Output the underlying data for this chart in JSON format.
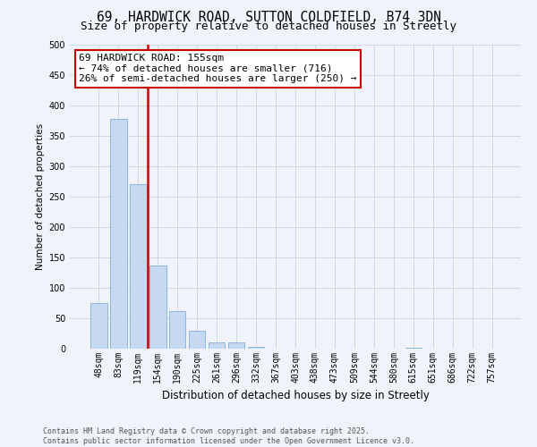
{
  "title": "69, HARDWICK ROAD, SUTTON COLDFIELD, B74 3DN",
  "subtitle": "Size of property relative to detached houses in Streetly",
  "bar_values": [
    75,
    378,
    270,
    137,
    62,
    29,
    10,
    10,
    3,
    0,
    0,
    0,
    0,
    0,
    0,
    0,
    2,
    0,
    0,
    0,
    0
  ],
  "categories": [
    "48sqm",
    "83sqm",
    "119sqm",
    "154sqm",
    "190sqm",
    "225sqm",
    "261sqm",
    "296sqm",
    "332sqm",
    "367sqm",
    "403sqm",
    "438sqm",
    "473sqm",
    "509sqm",
    "544sqm",
    "580sqm",
    "615sqm",
    "651sqm",
    "686sqm",
    "722sqm",
    "757sqm"
  ],
  "bar_color": "#c6d9f1",
  "bar_edge_color": "#8db4e3",
  "vline_x": 2.5,
  "vline_color": "#cc0000",
  "ylim": [
    0,
    500
  ],
  "yticks": [
    0,
    50,
    100,
    150,
    200,
    250,
    300,
    350,
    400,
    450,
    500
  ],
  "ylabel": "Number of detached properties",
  "xlabel": "Distribution of detached houses by size in Streetly",
  "annotation_title": "69 HARDWICK ROAD: 155sqm",
  "annotation_line1": "← 74% of detached houses are smaller (716)",
  "annotation_line2": "26% of semi-detached houses are larger (250) →",
  "annotation_box_color": "#ffffff",
  "annotation_box_edge": "#cc0000",
  "footer1": "Contains HM Land Registry data © Crown copyright and database right 2025.",
  "footer2": "Contains public sector information licensed under the Open Government Licence v3.0.",
  "grid_color": "#d0d8e8",
  "bg_color": "#f0f4fa",
  "title_fontsize": 10.5,
  "subtitle_fontsize": 9,
  "xlabel_fontsize": 8.5,
  "ylabel_fontsize": 7.5,
  "tick_fontsize": 7,
  "annot_fontsize": 8,
  "footer_fontsize": 6
}
